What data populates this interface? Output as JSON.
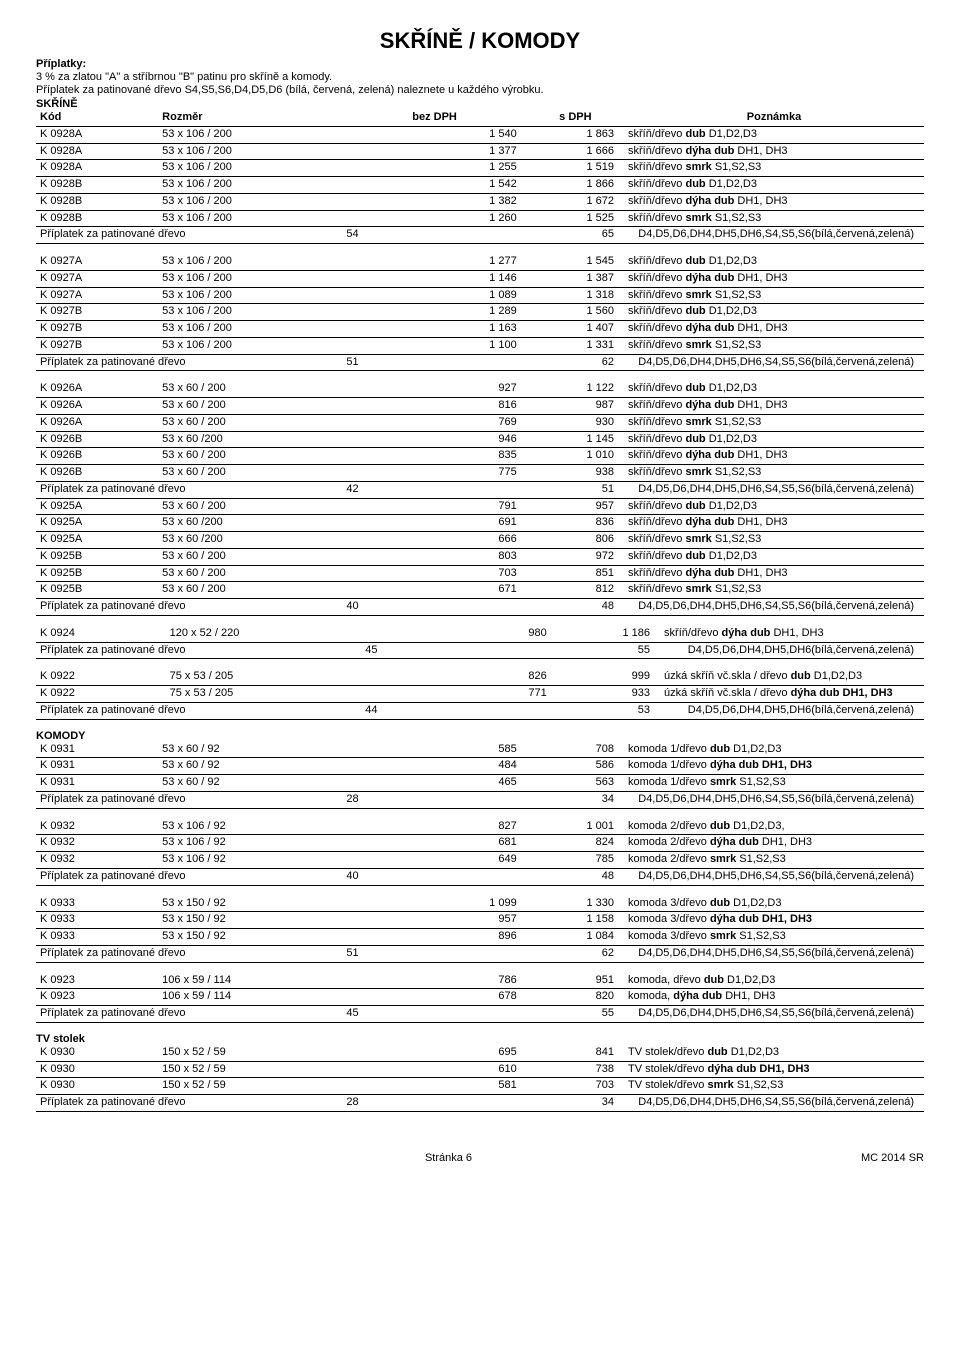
{
  "title": "SKŘÍNĚ / KOMODY",
  "intro": {
    "label": "Příplatky:",
    "line1": "3 % za zlatou \"A\" a stříbrnou \"B\" patinu pro skříně a komody.",
    "line2": "Příplatek za patinované dřevo S4,S5,S6,D4,D5,D6 (bílá, červená, zelená) naleznete u každého výrobku."
  },
  "headers": {
    "kod": "Kód",
    "rozmer": "Rozměr",
    "bez": "bez DPH",
    "s": "s DPH",
    "pozn": "Poznámka"
  },
  "sections": {
    "skrine": "SKŘÍNĚ",
    "komody": "KOMODY",
    "tv": "TV stolek"
  },
  "notes": {
    "dub": "skříň/dřevo <b>dub</b> D1,D2,D3",
    "dyha": "skříň/dřevo <b>dýha dub</b> DH1, DH3",
    "smrk": "skříň/dřevo <b>smrk</b> S1,S2,S3",
    "komoda_dub": "komoda 1/dřevo <b>dub</b> D1,D2,D3",
    "surcharge_full": "D4,D5,D6,DH4,DH5,DH6,S4,S5,S6(bílá,červená,zelená)",
    "surcharge_short": "D4,D5,D6,DH4,DH5,DH6(bílá,červená,zelená)"
  },
  "surcharge_label": "Příplatek za patinované dřevo",
  "groups": [
    {
      "title": "SKŘÍNĚ",
      "show_header": true,
      "rows": [
        [
          "K 0928A",
          "53 x 106 / 200",
          "1 540",
          "1 863",
          "skříň/dřevo <b>dub</b> D1,D2,D3"
        ],
        [
          "K 0928A",
          "53 x 106 / 200",
          "1 377",
          "1 666",
          "skříň/dřevo <b>dýha dub</b> DH1, DH3"
        ],
        [
          "K 0928A",
          "53 x 106 / 200",
          "1 255",
          "1 519",
          "skříň/dřevo <b>smrk</b> S1,S2,S3"
        ],
        [
          "K 0928B",
          "53 x 106 / 200",
          "1 542",
          "1 866",
          "skříň/dřevo <b>dub</b> D1,D2,D3"
        ],
        [
          "K 0928B",
          "53 x 106 / 200",
          "1 382",
          "1 672",
          "skříň/dřevo <b>dýha dub</b> DH1, DH3"
        ],
        [
          "K 0928B",
          "53 x 106 / 200",
          "1 260",
          "1 525",
          "skříň/dřevo <b>smrk</b> S1,S2,S3"
        ],
        [
          "__sur",
          "",
          "54",
          "65",
          "D4,D5,D6,DH4,DH5,DH6,S4,S5,S6(bílá,červená,zelená)"
        ]
      ]
    },
    {
      "rows": [
        [
          "K 0927A",
          "53 x 106 / 200",
          "1 277",
          "1 545",
          "skříň/dřevo <b>dub</b> D1,D2,D3"
        ],
        [
          "K 0927A",
          "53 x 106 / 200",
          "1 146",
          "1 387",
          "skříň/dřevo <b>dýha dub</b> DH1, DH3"
        ],
        [
          "K 0927A",
          "53 x 106 / 200",
          "1 089",
          "1 318",
          "skříň/dřevo <b>smrk</b> S1,S2,S3"
        ],
        [
          "K 0927B",
          "53 x 106 / 200",
          "1 289",
          "1 560",
          "skříň/dřevo <b>dub</b> D1,D2,D3"
        ],
        [
          "K 0927B",
          "53 x 106 / 200",
          "1 163",
          "1 407",
          "skříň/dřevo <b>dýha dub</b> DH1, DH3"
        ],
        [
          "K 0927B",
          "53 x 106 / 200",
          "1 100",
          "1 331",
          "skříň/dřevo <b>smrk</b> S1,S2,S3"
        ],
        [
          "__sur",
          "",
          "51",
          "62",
          "D4,D5,D6,DH4,DH5,DH6,S4,S5,S6(bílá,červená,zelená)"
        ]
      ]
    },
    {
      "rows": [
        [
          "K 0926A",
          "53 x 60 / 200",
          "927",
          "1 122",
          "skříň/dřevo <b>dub</b> D1,D2,D3"
        ],
        [
          "K 0926A",
          "53 x 60 / 200",
          "816",
          "987",
          "skříň/dřevo <b>dýha dub</b> DH1, DH3"
        ],
        [
          "K 0926A",
          "53 x 60 / 200",
          "769",
          "930",
          "skříň/dřevo <b>smrk</b> S1,S2,S3"
        ],
        [
          "K 0926B",
          "53 x 60 /200",
          "946",
          "1 145",
          "skříň/dřevo <b>dub</b> D1,D2,D3"
        ],
        [
          "K 0926B",
          "53 x 60 / 200",
          "835",
          "1 010",
          "skříň/dřevo <b>dýha dub</b> DH1, DH3"
        ],
        [
          "K 0926B",
          "53 x 60 / 200",
          "775",
          "938",
          "skříň/dřevo <b>smrk</b> S1,S2,S3"
        ],
        [
          "__sur",
          "",
          "42",
          "51",
          "D4,D5,D6,DH4,DH5,DH6,S4,S5,S6(bílá,červená,zelená)"
        ],
        [
          "K 0925A",
          "53 x 60 / 200",
          "791",
          "957",
          "skříň/dřevo <b>dub</b> D1,D2,D3"
        ],
        [
          "K 0925A",
          "53 x 60 /200",
          "691",
          "836",
          "skříň/dřevo <b>dýha dub</b> DH1, DH3"
        ],
        [
          "K 0925A",
          "53 x 60 /200",
          "666",
          "806",
          "skříň/dřevo <b>smrk</b> S1,S2,S3"
        ],
        [
          "K 0925B",
          "53 x 60 / 200",
          "803",
          "972",
          "skříň/dřevo <b>dub</b> D1,D2,D3"
        ],
        [
          "K 0925B",
          "53 x 60 / 200",
          "703",
          "851",
          "skříň/dřevo <b>dýha dub</b> DH1, DH3"
        ],
        [
          "K 0925B",
          "53 x 60 / 200",
          "671",
          "812",
          "skříň/dřevo <b>smrk</b> S1,S2,S3"
        ],
        [
          "__sur",
          "",
          "40",
          "48",
          "D4,D5,D6,DH4,DH5,DH6,S4,S5,S6(bílá,červená,zelená)"
        ]
      ]
    },
    {
      "rows": [
        [
          "K 0924",
          "120 x 52 / 220",
          "980",
          "1 186",
          "skříň/dřevo <b>dýha dub</b> DH1, DH3"
        ],
        [
          "__sur",
          "",
          "45",
          "55",
          "D4,D5,D6,DH4,DH5,DH6(bílá,červená,zelená)"
        ]
      ]
    },
    {
      "rows": [
        [
          "K 0922",
          "75 x 53 / 205",
          "826",
          "999",
          "úzká skříň vč.skla / dřevo <b>dub</b> D1,D2,D3"
        ],
        [
          "K 0922",
          "75 x 53 / 205",
          "771",
          "933",
          "úzká skříň vč.skla / dřevo <b>dýha dub DH1, DH3</b>"
        ],
        [
          "__sur",
          "",
          "44",
          "53",
          "D4,D5,D6,DH4,DH5,DH6(bílá,červená,zelená)"
        ]
      ]
    },
    {
      "title": "KOMODY",
      "rows": [
        [
          "K 0931",
          "53 x 60 / 92",
          "585",
          "708",
          "komoda 1/dřevo <b>dub</b> D1,D2,D3"
        ],
        [
          "K 0931",
          "53 x 60 / 92",
          "484",
          "586",
          "komoda 1/dřevo <b>dýha dub DH1, DH3</b>"
        ],
        [
          "K 0931",
          "53 x 60 / 92",
          "465",
          "563",
          "komoda 1/dřevo <b>smrk</b> S1,S2,S3"
        ],
        [
          "__sur",
          "",
          "28",
          "34",
          "D4,D5,D6,DH4,DH5,DH6,S4,S5,S6(bílá,červená,zelená)"
        ]
      ]
    },
    {
      "rows": [
        [
          "K 0932",
          "53 x 106 / 92",
          "827",
          "1 001",
          "komoda 2/dřevo <b>dub</b> D1,D2,D3,"
        ],
        [
          "K 0932",
          "53 x 106 / 92",
          "681",
          "824",
          "komoda 2/dřevo <b>dýha dub</b> DH1, DH3"
        ],
        [
          "K 0932",
          "53 x 106 / 92",
          "649",
          "785",
          "komoda 2/dřevo <b>smrk</b> S1,S2,S3"
        ],
        [
          "__sur",
          "",
          "40",
          "48",
          "D4,D5,D6,DH4,DH5,DH6,S4,S5,S6(bílá,červená,zelená)"
        ]
      ]
    },
    {
      "rows": [
        [
          "K 0933",
          "53 x 150 / 92",
          "1 099",
          "1 330",
          "komoda 3/dřevo <b>dub</b> D1,D2,D3"
        ],
        [
          "K 0933",
          "53 x 150 / 92",
          "957",
          "1 158",
          "komoda 3/dřevo <b>dýha dub DH1, DH3</b>"
        ],
        [
          "K 0933",
          "53 x 150 / 92",
          "896",
          "1 084",
          "komoda 3/dřevo <b>smrk</b> S1,S2,S3"
        ],
        [
          "__sur",
          "",
          "51",
          "62",
          "D4,D5,D6,DH4,DH5,DH6,S4,S5,S6(bílá,červená,zelená)"
        ]
      ]
    },
    {
      "rows": [
        [
          "K 0923",
          "106 x 59 / 114",
          "786",
          "951",
          "komoda, dřevo <b>dub</b> D1,D2,D3"
        ],
        [
          "K 0923",
          "106 x 59 / 114",
          "678",
          "820",
          "komoda, <b>dýha dub</b> DH1, DH3"
        ],
        [
          "__sur",
          "",
          "45",
          "55",
          "D4,D5,D6,DH4,DH5,DH6,S4,S5,S6(bílá,červená,zelená)"
        ]
      ]
    },
    {
      "title": "TV stolek",
      "rows": [
        [
          "K 0930",
          "150 x 52 / 59",
          "695",
          "841",
          "TV stolek/dřevo <b>dub</b> D1,D2,D3"
        ],
        [
          "K 0930",
          "150 x 52 / 59",
          "610",
          "738",
          "TV stolek/dřevo <b>dýha dub DH1, DH3</b>"
        ],
        [
          "K 0930",
          "150 x 52 / 59",
          "581",
          "703",
          "TV stolek/dřevo <b>smrk</b> S1,S2,S3"
        ],
        [
          "__sur",
          "",
          "28",
          "34",
          "D4,D5,D6,DH4,DH5,DH6,S4,S5,S6(bílá,červená,zelená)"
        ]
      ]
    }
  ],
  "footer": {
    "left": "",
    "center": "Stránka 6",
    "right": "MC 2014 SR"
  }
}
